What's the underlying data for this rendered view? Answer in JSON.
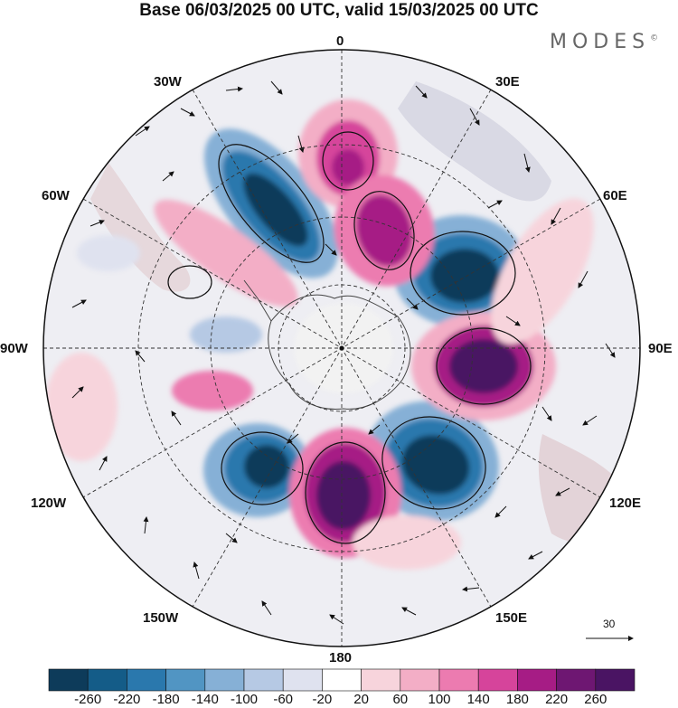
{
  "title": "Base 06/03/2025 00 UTC, valid 15/03/2025 00 UTC",
  "brand": "MODES",
  "brand_mark": "©",
  "map": {
    "projection": "polar-stereographic-south",
    "longitude_labels": {
      "top": "0",
      "top_right": "30E",
      "upper_right": "60E",
      "right": "90E",
      "lower_right": "120E",
      "bottom_right": "150E",
      "bottom": "180",
      "bottom_left": "150W",
      "lower_left": "120W",
      "left": "90W",
      "upper_left": "60W",
      "top_left": "30W"
    },
    "grid": true
  },
  "vector_scale": {
    "label": "30"
  },
  "colorbar": {
    "labels": [
      "-260",
      "-220",
      "-180",
      "-140",
      "-100",
      "-60",
      "-20",
      "20",
      "60",
      "100",
      "140",
      "180",
      "220",
      "260"
    ],
    "colors": [
      "#0d3b5a",
      "#145c88",
      "#2a78ad",
      "#5195c3",
      "#86b0d6",
      "#b6c9e4",
      "#dfe2ef",
      "#ffffff",
      "#f7d4dc",
      "#f3aec6",
      "#ec7bb0",
      "#d6449b",
      "#a61c85",
      "#6e1772",
      "#4a1463"
    ]
  }
}
